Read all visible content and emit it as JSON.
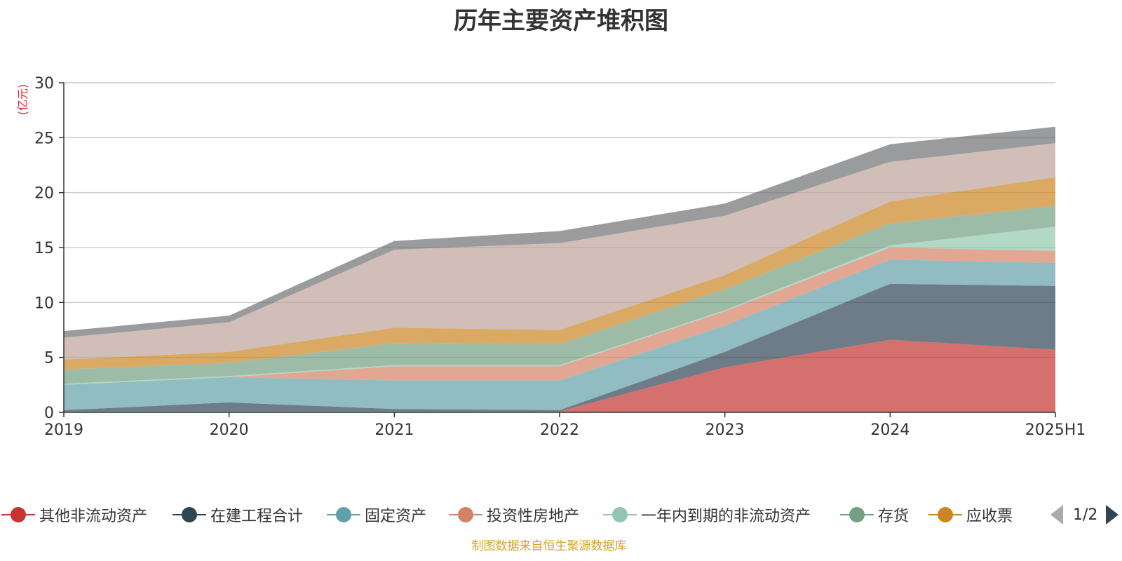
{
  "chart_data": {
    "type": "area",
    "title": "历年主要资产堆积图",
    "ylabel": "(亿元)",
    "xlabel": "",
    "ylim": [
      0,
      30
    ],
    "yticks": [
      0,
      5,
      10,
      15,
      20,
      25,
      30
    ],
    "grid": true,
    "stacked": true,
    "categories": [
      "2019",
      "2020",
      "2021",
      "2022",
      "2023",
      "2024",
      "2025H1"
    ],
    "series": [
      {
        "name": "其他非流动资产",
        "color": "#c23531",
        "values": [
          0.1,
          0.1,
          0.1,
          0.1,
          4.1,
          6.6,
          5.7
        ]
      },
      {
        "name": "在建工程合计",
        "color": "#2f4554",
        "values": [
          0.1,
          0.8,
          0.2,
          0.1,
          1.4,
          5.1,
          5.8
        ]
      },
      {
        "name": "固定资产",
        "color": "#61a0a8",
        "values": [
          2.3,
          2.3,
          2.6,
          2.7,
          2.4,
          2.2,
          2.1
        ]
      },
      {
        "name": "投资性房地产",
        "color": "#d48265",
        "values": [
          0.0,
          0.0,
          1.3,
          1.3,
          1.3,
          1.1,
          1.1
        ]
      },
      {
        "name": "一年内到期的非流动资产",
        "color": "#91c7ae",
        "values": [
          0.1,
          0.1,
          0.1,
          0.1,
          0.1,
          0.2,
          2.2
        ]
      },
      {
        "name": "存货",
        "color": "#749f83",
        "values": [
          1.3,
          1.2,
          2.0,
          1.9,
          1.9,
          2.0,
          1.9
        ]
      },
      {
        "name": "应收票",
        "color": "#ca8622",
        "values": [
          0.9,
          1.0,
          1.4,
          1.3,
          1.3,
          2.0,
          2.6
        ]
      },
      {
        "name": "",
        "color": "#bda29a",
        "values": [
          2.0,
          2.7,
          7.1,
          7.9,
          5.4,
          3.6,
          3.1
        ]
      },
      {
        "name": "",
        "color": "#6e7074",
        "values": [
          0.6,
          0.6,
          0.8,
          1.1,
          1.1,
          1.6,
          1.5
        ]
      }
    ]
  },
  "legend": {
    "page_text": "1/2"
  },
  "source_note": "制图数据来自恒生聚源数据库"
}
